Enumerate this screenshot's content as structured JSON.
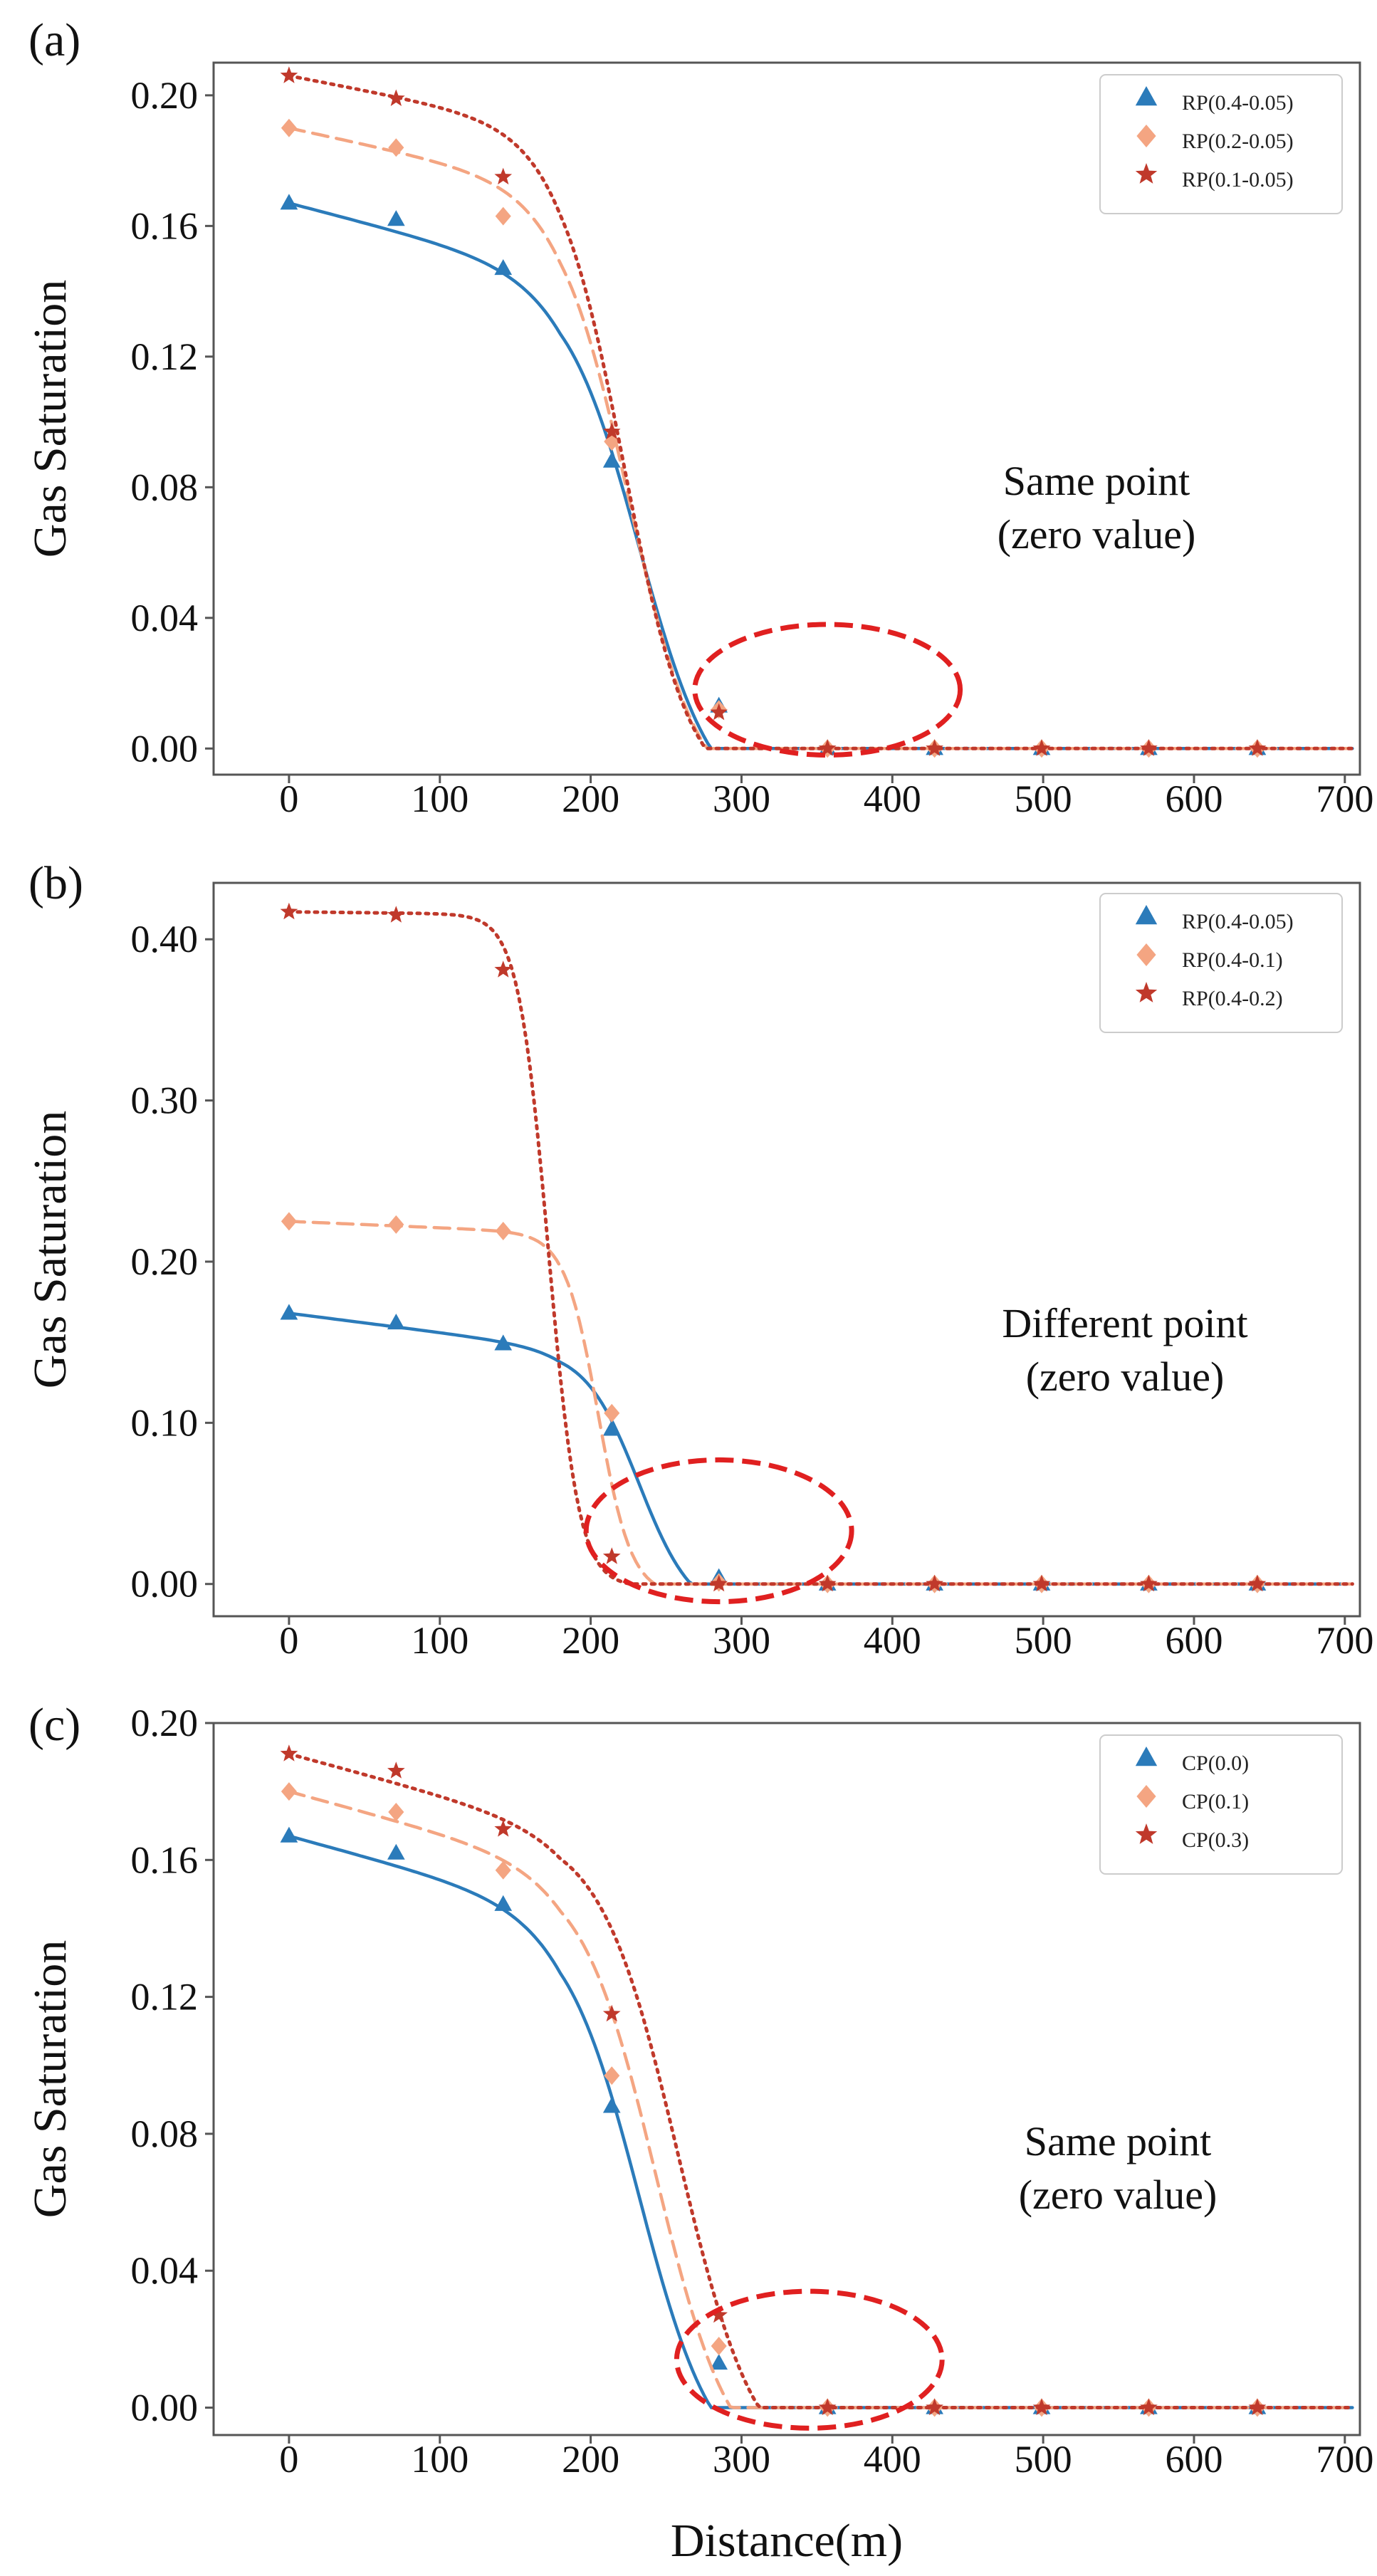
{
  "figure": {
    "xlabel": "Distance(m)",
    "ylabel": "Gas Saturation"
  },
  "chart_data": [
    {
      "panel": "(a)",
      "type": "line",
      "xlim": [
        -50,
        710
      ],
      "ylim": [
        -0.008,
        0.21
      ],
      "xticks": [
        0,
        100,
        200,
        300,
        400,
        500,
        600,
        700
      ],
      "yticks": [
        0.0,
        0.04,
        0.08,
        0.12,
        0.16,
        0.2
      ],
      "ytick_labels": [
        "0.00",
        "0.04",
        "0.08",
        "0.12",
        "0.16",
        "0.20"
      ],
      "annotation": [
        "Same point",
        "(zero value)"
      ],
      "highlight": {
        "cx": 357,
        "cy": 0.018,
        "rx": 88,
        "ry": 0.02,
        "color": "#e02020"
      },
      "x": [
        0,
        71,
        142,
        214,
        285,
        357,
        428,
        499,
        570,
        642
      ],
      "series": [
        {
          "name": "RP(0.4-0.05)",
          "marker": "triangle",
          "style": "solid",
          "color": "#2b7bba",
          "curve": {
            "top": 0.167,
            "mid": 232,
            "scale": 25,
            "slope": -0.00012
          },
          "values": [
            0.167,
            0.162,
            0.147,
            0.088,
            0.013,
            0.0,
            0.0,
            0.0,
            0.0,
            0.0
          ]
        },
        {
          "name": "RP(0.2-0.05)",
          "marker": "diamond",
          "style": "dashed",
          "color": "#f4a582",
          "curve": {
            "top": 0.19,
            "mid": 225,
            "scale": 23,
            "slope": -0.0001
          },
          "values": [
            0.19,
            0.184,
            0.163,
            0.094,
            0.012,
            0.0,
            0.0,
            0.0,
            0.0,
            0.0
          ]
        },
        {
          "name": "RP(0.1-0.05)",
          "marker": "star",
          "style": "dotted",
          "color": "#c0392b",
          "curve": {
            "top": 0.206,
            "mid": 222,
            "scale": 22,
            "slope": -9e-05
          },
          "values": [
            0.206,
            0.199,
            0.175,
            0.097,
            0.011,
            0.0,
            0.0,
            0.0,
            0.0,
            0.0
          ]
        }
      ]
    },
    {
      "panel": "(b)",
      "type": "line",
      "xlim": [
        -50,
        710
      ],
      "ylim": [
        -0.02,
        0.435
      ],
      "xticks": [
        0,
        100,
        200,
        300,
        400,
        500,
        600,
        700
      ],
      "yticks": [
        0.0,
        0.1,
        0.2,
        0.3,
        0.4
      ],
      "ytick_labels": [
        "0.00",
        "0.10",
        "0.20",
        "0.30",
        "0.40"
      ],
      "annotation": [
        "Different point",
        "(zero value)"
      ],
      "highlight": {
        "cx": 285,
        "cy": 0.033,
        "rx": 88,
        "ry": 0.044,
        "color": "#e02020"
      },
      "x": [
        0,
        71,
        142,
        214,
        285,
        357,
        428,
        499,
        570,
        642
      ],
      "series": [
        {
          "name": "RP(0.4-0.05)",
          "marker": "triangle",
          "style": "solid",
          "color": "#2b7bba",
          "curve": {
            "top": 0.168,
            "mid": 232,
            "scale": 18,
            "slope": -0.00012
          },
          "values": [
            0.168,
            0.162,
            0.149,
            0.096,
            0.004,
            0.0,
            0.0,
            0.0,
            0.0,
            0.0
          ]
        },
        {
          "name": "RP(0.4-0.1)",
          "marker": "diamond",
          "style": "dashed",
          "color": "#f4a582",
          "curve": {
            "top": 0.225,
            "mid": 205,
            "scale": 11,
            "slope": -4e-05
          },
          "values": [
            0.225,
            0.223,
            0.219,
            0.106,
            0.001,
            0.0,
            0.0,
            0.0,
            0.0,
            0.0
          ]
        },
        {
          "name": "RP(0.4-0.2)",
          "marker": "star",
          "style": "dotted",
          "color": "#c0392b",
          "curve": {
            "top": 0.417,
            "mid": 172,
            "scale": 10,
            "slope": -1e-05
          },
          "values": [
            0.417,
            0.415,
            0.381,
            0.017,
            0.0,
            0.0,
            0.0,
            0.0,
            0.0,
            0.0
          ]
        }
      ]
    },
    {
      "panel": "(c)",
      "type": "line",
      "xlim": [
        -50,
        710
      ],
      "ylim": [
        -0.008,
        0.2
      ],
      "xticks": [
        0,
        100,
        200,
        300,
        400,
        500,
        600,
        700
      ],
      "yticks": [
        0.0,
        0.04,
        0.08,
        0.12,
        0.16,
        0.2
      ],
      "ytick_labels": [
        "0.00",
        "0.04",
        "0.08",
        "0.12",
        "0.16",
        "0.20"
      ],
      "annotation": [
        "Same point",
        "(zero value)"
      ],
      "highlight": {
        "cx": 345,
        "cy": 0.014,
        "rx": 88,
        "ry": 0.02,
        "color": "#e02020"
      },
      "x": [
        0,
        71,
        142,
        214,
        285,
        357,
        428,
        499,
        570,
        642
      ],
      "series": [
        {
          "name": "CP(0.0)",
          "marker": "triangle",
          "style": "solid",
          "color": "#2b7bba",
          "curve": {
            "top": 0.167,
            "mid": 232,
            "scale": 25,
            "slope": -0.00012
          },
          "values": [
            0.167,
            0.162,
            0.147,
            0.088,
            0.013,
            0.0,
            0.0,
            0.0,
            0.0,
            0.0
          ]
        },
        {
          "name": "CP(0.1)",
          "marker": "diamond",
          "style": "dashed",
          "color": "#f4a582",
          "curve": {
            "top": 0.18,
            "mid": 243,
            "scale": 25,
            "slope": -0.00012
          },
          "values": [
            0.18,
            0.174,
            0.157,
            0.097,
            0.018,
            0.0,
            0.0,
            0.0,
            0.0,
            0.0
          ]
        },
        {
          "name": "CP(0.3)",
          "marker": "star",
          "style": "dotted",
          "color": "#c0392b",
          "curve": {
            "top": 0.191,
            "mid": 258,
            "scale": 26,
            "slope": -0.00012
          },
          "values": [
            0.191,
            0.186,
            0.169,
            0.115,
            0.027,
            0.0,
            0.0,
            0.0,
            0.0,
            0.0
          ]
        }
      ]
    }
  ]
}
